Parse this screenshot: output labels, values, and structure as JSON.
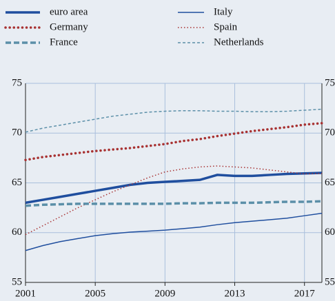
{
  "chart_data": {
    "type": "line",
    "x": [
      2001,
      2002,
      2003,
      2004,
      2005,
      2006,
      2007,
      2008,
      2009,
      2010,
      2011,
      2012,
      2013,
      2014,
      2015,
      2016,
      2017,
      2018
    ],
    "series": [
      {
        "name": "euro area",
        "color": "#1f4e9e",
        "width": "thick",
        "dash": "solid",
        "values": [
          63.0,
          63.3,
          63.6,
          63.9,
          64.2,
          64.5,
          64.8,
          65.0,
          65.1,
          65.2,
          65.3,
          65.8,
          65.7,
          65.7,
          65.8,
          65.9,
          65.95,
          66.0
        ]
      },
      {
        "name": "Italy",
        "color": "#1f4e9e",
        "width": "thin",
        "dash": "solid",
        "values": [
          58.2,
          58.7,
          59.1,
          59.4,
          59.7,
          59.9,
          60.05,
          60.15,
          60.25,
          60.4,
          60.55,
          60.8,
          61.0,
          61.15,
          61.3,
          61.45,
          61.7,
          61.95
        ]
      },
      {
        "name": "Germany",
        "color": "#a83232",
        "width": "thick",
        "dash": "dotted",
        "values": [
          67.3,
          67.6,
          67.8,
          68.0,
          68.2,
          68.35,
          68.5,
          68.7,
          68.9,
          69.2,
          69.4,
          69.7,
          69.95,
          70.2,
          70.4,
          70.6,
          70.85,
          71.0
        ]
      },
      {
        "name": "Spain",
        "color": "#a83232",
        "width": "thin",
        "dash": "dotted",
        "values": [
          59.8,
          60.7,
          61.6,
          62.5,
          63.3,
          64.1,
          64.8,
          65.5,
          66.1,
          66.4,
          66.6,
          66.7,
          66.6,
          66.5,
          66.3,
          66.1,
          65.9,
          65.95
        ]
      },
      {
        "name": "France",
        "color": "#5b8fa8",
        "width": "thick",
        "dash": "dashed",
        "values": [
          62.7,
          62.8,
          62.85,
          62.9,
          62.9,
          62.9,
          62.9,
          62.9,
          62.9,
          62.95,
          62.95,
          63.0,
          63.0,
          63.0,
          63.05,
          63.1,
          63.1,
          63.15
        ]
      },
      {
        "name": "Netherlands",
        "color": "#5b8fa8",
        "width": "thin",
        "dash": "dashed",
        "values": [
          70.1,
          70.5,
          70.8,
          71.1,
          71.4,
          71.7,
          71.9,
          72.1,
          72.2,
          72.25,
          72.25,
          72.2,
          72.2,
          72.15,
          72.15,
          72.2,
          72.3,
          72.4
        ]
      }
    ],
    "xlim": [
      2001,
      2018
    ],
    "xticks": [
      2001,
      2005,
      2009,
      2013,
      2017
    ],
    "ylim": [
      55,
      75
    ],
    "yticks": [
      55,
      60,
      65,
      70,
      75
    ],
    "grid": true
  }
}
